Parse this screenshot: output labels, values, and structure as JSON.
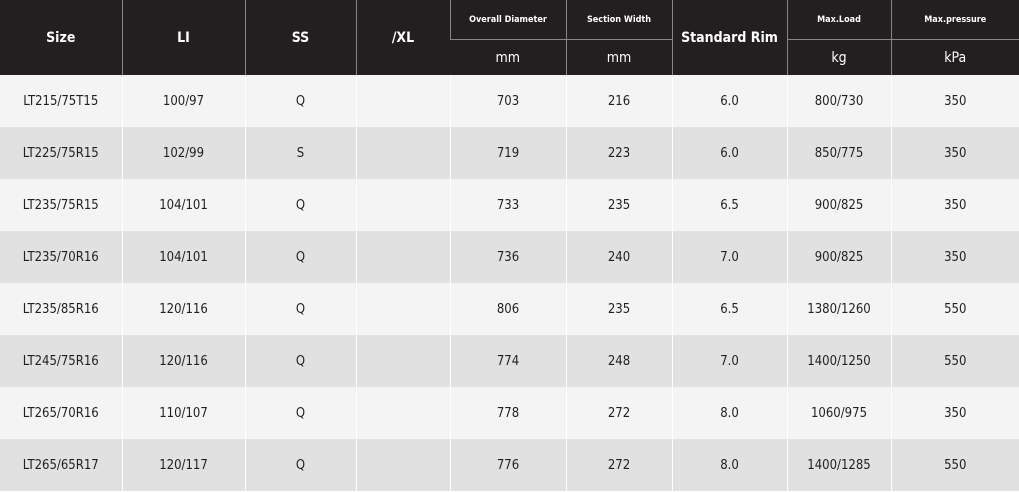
{
  "header": {
    "size": "Size",
    "li": "LI",
    "ss": "SS",
    "xl": "/XL",
    "overall_diameter": "Overall Diameter",
    "overall_diameter_unit": "mm",
    "section_width": "Section Width",
    "section_width_unit": "mm",
    "standard_rim": "Standard Rim",
    "max_load": "Max.Load",
    "max_load_unit": "kg",
    "max_pressure": "Max.pressure",
    "max_pressure_unit": "kPa"
  },
  "rows": [
    [
      "LT215/75T15",
      "100/97",
      "Q",
      "703",
      "216",
      "6.0",
      "800/730",
      "350"
    ],
    [
      "LT225/75R15",
      "102/99",
      "S",
      "719",
      "223",
      "6.0",
      "850/775",
      "350"
    ],
    [
      "LT235/75R15",
      "104/101",
      "Q",
      "733",
      "235",
      "6.5",
      "900/825",
      "350"
    ],
    [
      "LT235/70R16",
      "104/101",
      "Q",
      "736",
      "240",
      "7.0",
      "900/825",
      "350"
    ],
    [
      "LT235/85R16",
      "120/116",
      "Q",
      "806",
      "235",
      "6.5",
      "1380/1260",
      "550"
    ],
    [
      "LT245/75R16",
      "120/116",
      "Q",
      "774",
      "248",
      "7.0",
      "1400/1250",
      "550"
    ],
    [
      "LT265/70R16",
      "110/107",
      "Q",
      "778",
      "272",
      "8.0",
      "1060/975",
      "350"
    ],
    [
      "LT265/65R17",
      "120/117",
      "Q",
      "776",
      "272",
      "8.0",
      "1400/1285",
      "550"
    ]
  ]
}
